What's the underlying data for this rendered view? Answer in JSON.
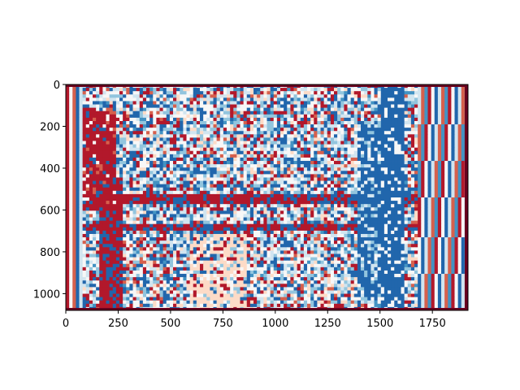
{
  "chart_data": {
    "type": "heatmap",
    "title": "",
    "xlabel": "",
    "ylabel": "",
    "xlim": [
      0,
      1920
    ],
    "ylim": [
      1080,
      0
    ],
    "x_ticks": [
      0,
      250,
      500,
      750,
      1000,
      1250,
      1500,
      1750
    ],
    "y_ticks": [
      0,
      200,
      400,
      600,
      800,
      1000
    ],
    "y_axis_inverted": true,
    "colormap": "RdBu",
    "palette": [
      "#67001f",
      "#b2182b",
      "#d6604d",
      "#fddbc7",
      "#f7f7f7",
      "#d1e5f0",
      "#92c5de",
      "#4393c3",
      "#2166ac",
      "#053061"
    ],
    "grid": false,
    "legend": "none"
  }
}
